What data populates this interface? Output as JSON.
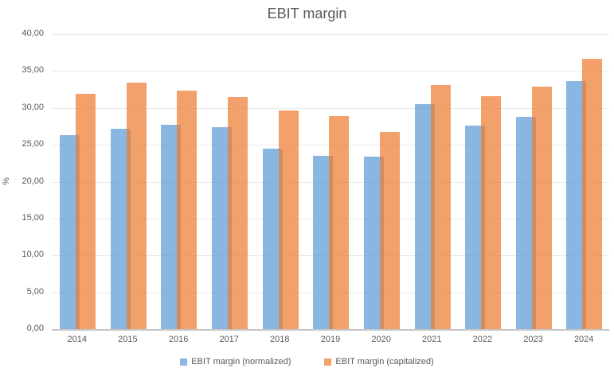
{
  "chart_data": {
    "type": "bar",
    "title": "EBIT margin",
    "ylabel": "%",
    "xlabel": "",
    "categories": [
      "2014",
      "2015",
      "2016",
      "2017",
      "2018",
      "2019",
      "2020",
      "2021",
      "2022",
      "2023",
      "2024"
    ],
    "series": [
      {
        "name": "EBIT margin (normalized)",
        "color": "#5B9BD5",
        "values": [
          26.3,
          27.2,
          27.7,
          27.4,
          24.5,
          23.5,
          23.4,
          30.5,
          27.6,
          28.8,
          33.6
        ]
      },
      {
        "name": "EBIT margin (capitalized)",
        "color": "#ED7D31",
        "values": [
          31.9,
          33.4,
          32.4,
          31.5,
          29.7,
          28.9,
          26.7,
          33.1,
          31.6,
          32.9,
          36.7
        ]
      }
    ],
    "ylim": [
      0,
      40
    ],
    "ytick_step": 5,
    "ytick_labels": [
      "0,00",
      "5,00",
      "10,00",
      "15,00",
      "20,00",
      "25,00",
      "30,00",
      "35,00",
      "40,00"
    ],
    "grid": true,
    "legend_position": "bottom",
    "bar_fill_opacity": 0.72,
    "text_color": "#595959",
    "gridline_color": "#EAEAEA",
    "axis_line_color": "#C6C6C6"
  }
}
